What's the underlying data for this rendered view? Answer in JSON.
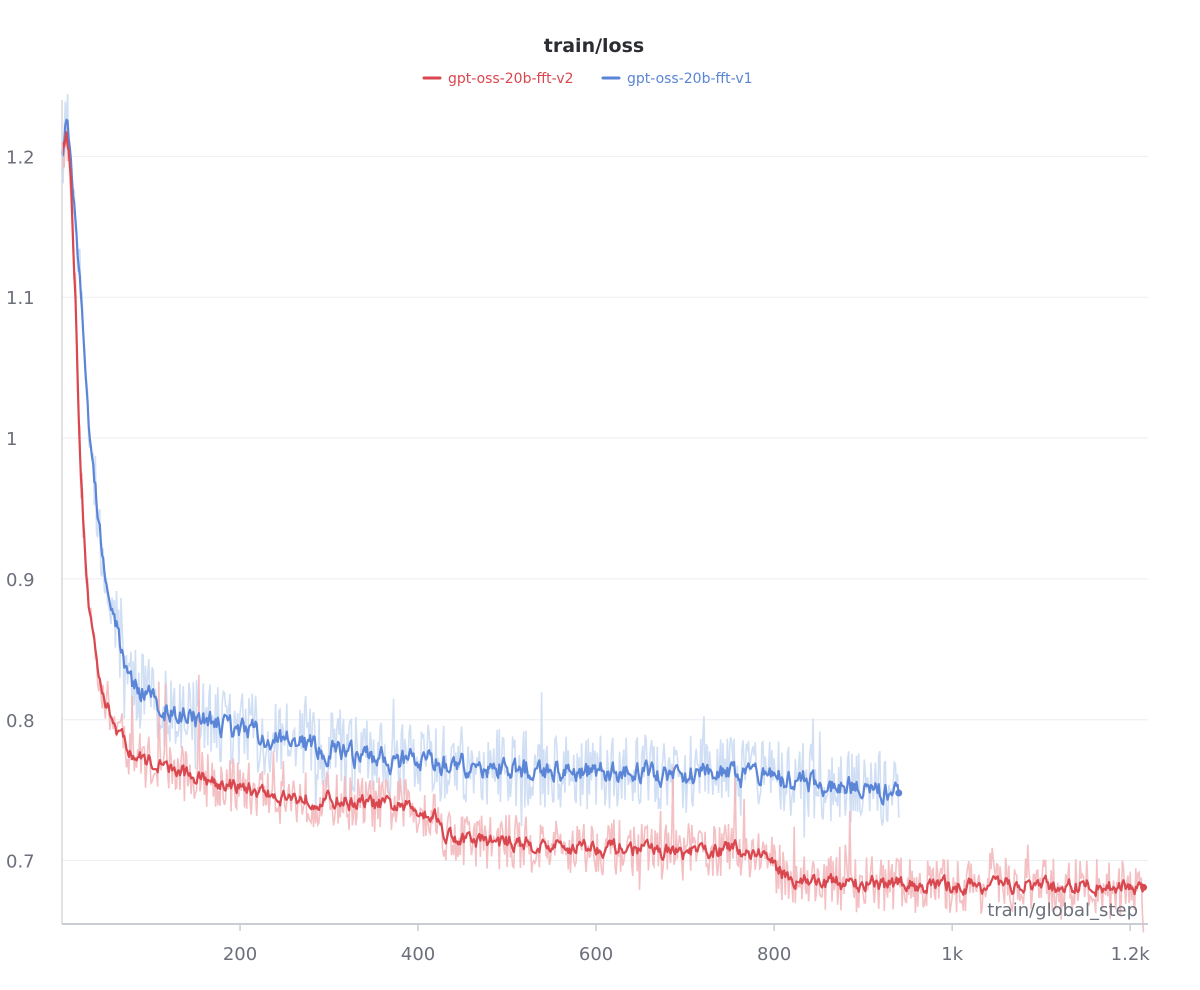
{
  "chart_data": {
    "type": "line",
    "title": "train/loss",
    "xlabel": "train/global_step",
    "ylabel": "",
    "xlim": [
      0,
      1220
    ],
    "ylim": [
      0.655,
      1.24
    ],
    "x_ticks": [
      200,
      400,
      600,
      800,
      1000,
      1200
    ],
    "x_tick_labels": [
      "200",
      "400",
      "600",
      "800",
      "1k",
      "1.2k"
    ],
    "y_ticks": [
      0.7,
      0.8,
      0.9,
      1.0,
      1.1,
      1.2
    ],
    "y_tick_labels": [
      "0.7",
      "0.8",
      "0.9",
      "1",
      "1.1",
      "1.2"
    ],
    "grid": true,
    "legend_position": "top-center",
    "series": [
      {
        "name": "gpt-oss-20b-fft-v2",
        "color": "#d9474f",
        "raw_color": "#f2b5b8",
        "x": [
          0,
          5,
          10,
          15,
          20,
          25,
          30,
          40,
          50,
          60,
          70,
          80,
          100,
          120,
          150,
          200,
          250,
          300,
          350,
          400,
          420,
          430,
          450,
          500,
          550,
          600,
          650,
          700,
          750,
          790,
          800,
          820,
          850,
          900,
          950,
          1000,
          1050,
          1100,
          1150,
          1215
        ],
        "values": [
          1.205,
          1.215,
          1.19,
          1.1,
          0.99,
          0.93,
          0.88,
          0.84,
          0.81,
          0.795,
          0.785,
          0.775,
          0.77,
          0.765,
          0.76,
          0.752,
          0.745,
          0.743,
          0.74,
          0.737,
          0.732,
          0.72,
          0.715,
          0.713,
          0.71,
          0.71,
          0.708,
          0.705,
          0.708,
          0.705,
          0.695,
          0.688,
          0.685,
          0.683,
          0.683,
          0.682,
          0.682,
          0.682,
          0.682,
          0.681
        ]
      },
      {
        "name": "gpt-oss-20b-fft-v1",
        "color": "#5b85d6",
        "raw_color": "#c9d9f3",
        "x": [
          0,
          5,
          10,
          15,
          20,
          25,
          30,
          40,
          50,
          60,
          70,
          80,
          100,
          120,
          150,
          200,
          250,
          300,
          350,
          400,
          450,
          500,
          550,
          600,
          650,
          700,
          750,
          800,
          850,
          900,
          940
        ],
        "values": [
          1.2,
          1.225,
          1.2,
          1.16,
          1.11,
          1.06,
          1.01,
          0.95,
          0.9,
          0.87,
          0.84,
          0.825,
          0.815,
          0.805,
          0.8,
          0.793,
          0.785,
          0.777,
          0.772,
          0.77,
          0.768,
          0.766,
          0.765,
          0.763,
          0.762,
          0.761,
          0.76,
          0.757,
          0.755,
          0.752,
          0.748
        ]
      }
    ]
  }
}
